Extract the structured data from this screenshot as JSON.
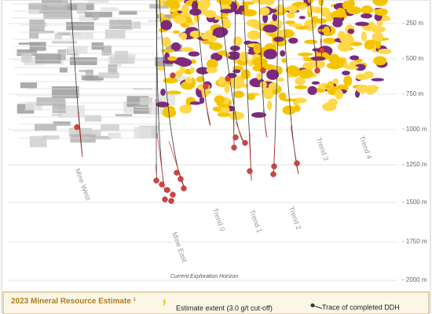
{
  "depth_labels": [
    "- 250 m",
    "- 500 m",
    "- 750 m",
    "- 1000 m",
    "- 1250 m",
    "- 1500 m",
    "- 1750 m",
    "- 2000 m"
  ],
  "trend_labels": [
    "Mine West",
    "Mine East",
    "Trend 0",
    "Trend 1",
    "Trend 2",
    "Trend 3",
    "Trend 4"
  ],
  "horizon_label": "Current Exploration Horizon",
  "legend": {
    "title": "2023 Mineral Resource Estimate ¹",
    "estimate": "Estimate extent (3.0  g/t cut-off)",
    "ddh": "Trace of completed DDH"
  }
}
